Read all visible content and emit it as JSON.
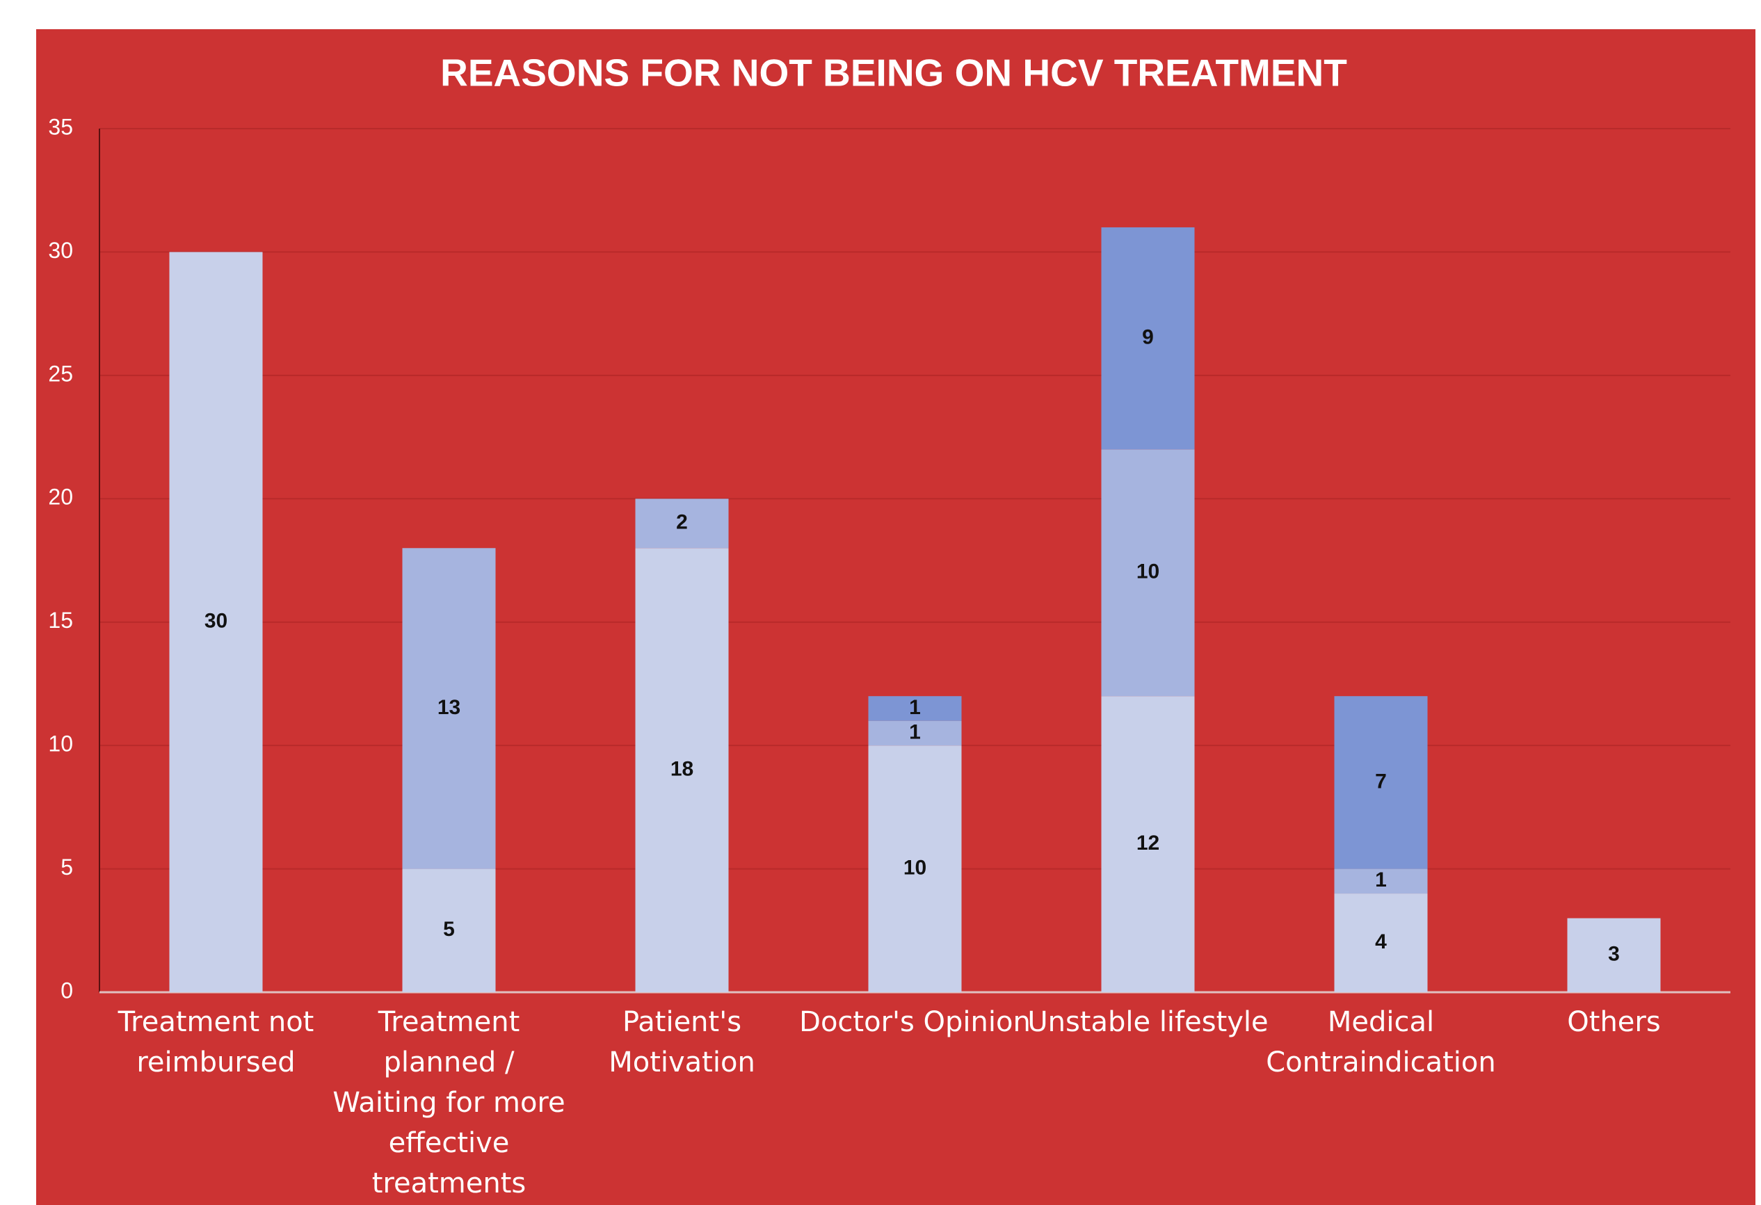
{
  "chart_data": {
    "type": "stacked_bar",
    "title": "REASONS FOR NOT BEING ON HCV TREATMENT",
    "categories": [
      "Treatment not reimbursed",
      "Treatment planned / Waiting for more effective treatments",
      "Patient's Motivation",
      "Doctor's Opinion",
      "Unstable lifestyle",
      "Medical Contraindication",
      "Others"
    ],
    "series": [
      {
        "color": "#c8d0ea",
        "values": [
          30,
          5,
          18,
          10,
          12,
          4,
          3
        ]
      },
      {
        "color": "#a6b4df",
        "values": [
          null,
          13,
          2,
          1,
          10,
          1,
          null
        ]
      },
      {
        "color": "#7d95d4",
        "values": [
          null,
          null,
          null,
          1,
          9,
          7,
          null
        ]
      }
    ],
    "ylim": [
      0,
      35
    ],
    "yticks": [
      0,
      5,
      10,
      15,
      20,
      25,
      30,
      35
    ],
    "grid": true,
    "background": "#cc3333"
  }
}
